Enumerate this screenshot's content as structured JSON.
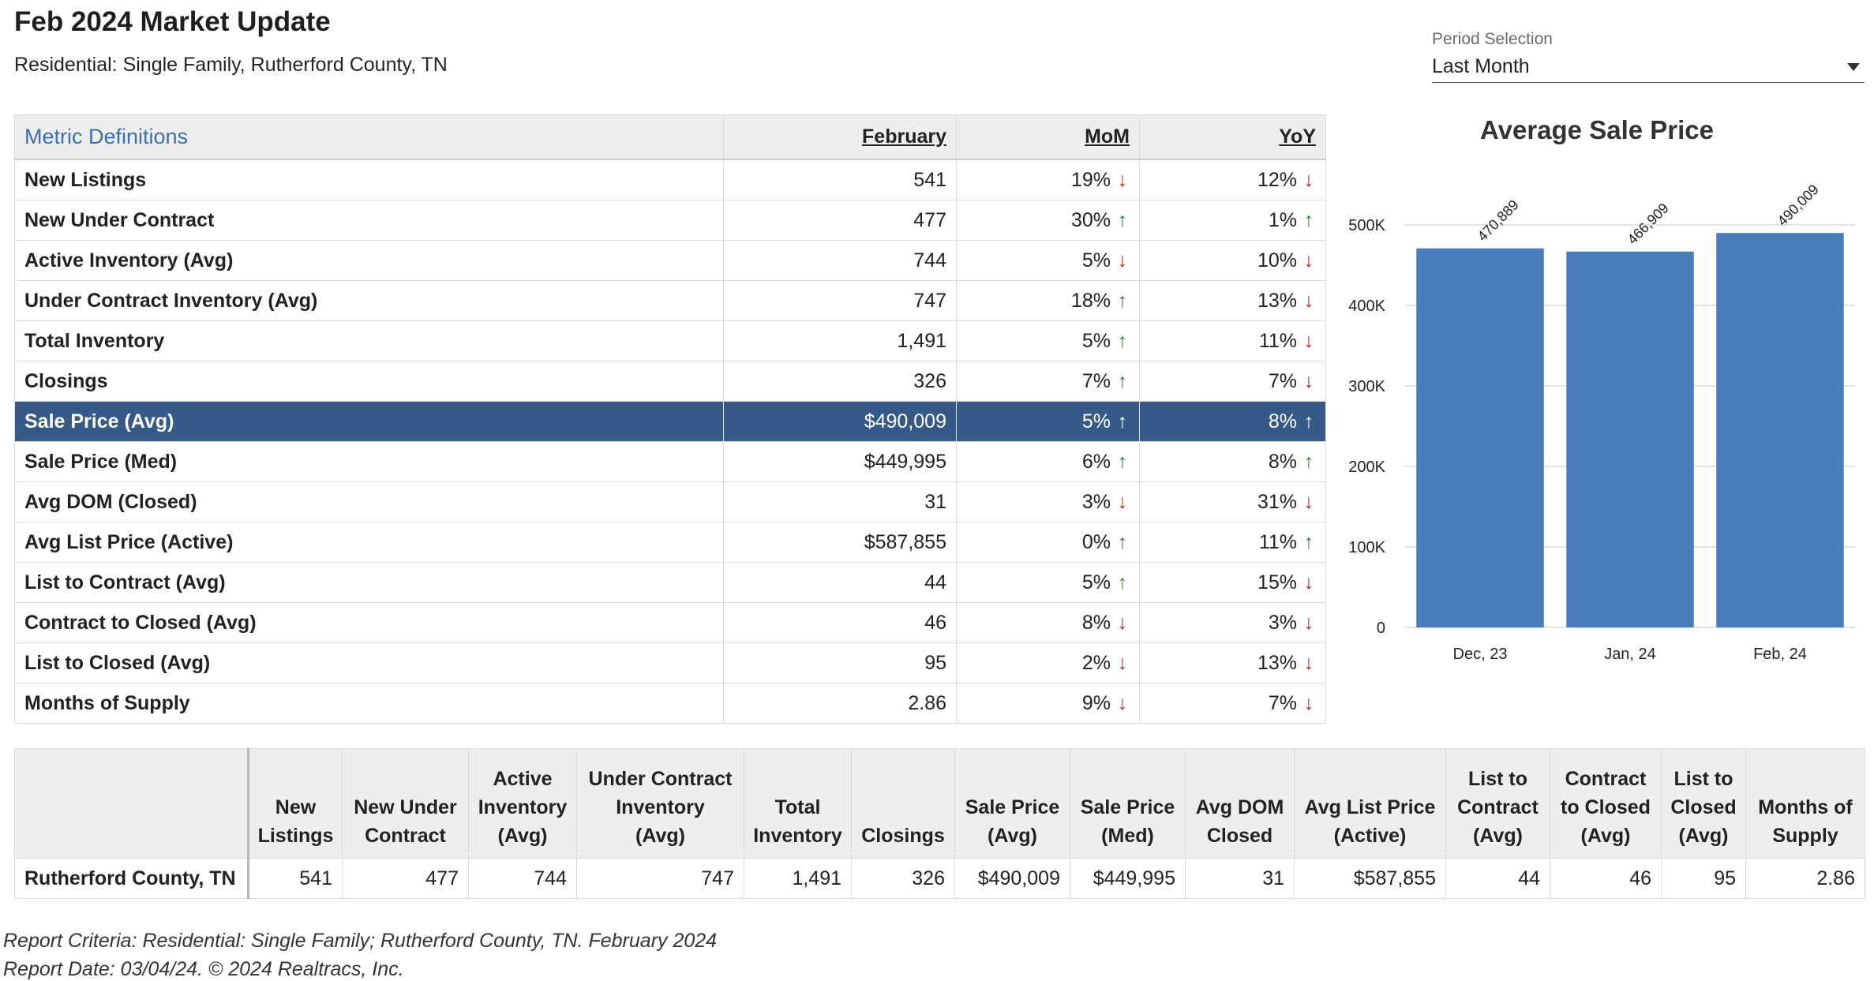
{
  "header": {
    "title": "Feb 2024 Market Update",
    "subtitle": "Residential: Single Family, Rutherford County, TN"
  },
  "period": {
    "label": "Period Selection",
    "value": "Last Month"
  },
  "metrics_table": {
    "headers": {
      "definitions": "Metric Definitions",
      "month": "February",
      "mom": "MoM",
      "yoy": "YoY"
    },
    "rows": [
      {
        "name": "New Listings",
        "value": "541",
        "mom": "19%",
        "mom_dir": "down",
        "yoy": "12%",
        "yoy_dir": "down"
      },
      {
        "name": "New Under Contract",
        "value": "477",
        "mom": "30%",
        "mom_dir": "up",
        "yoy": "1%",
        "yoy_dir": "up"
      },
      {
        "name": "Active Inventory (Avg)",
        "value": "744",
        "mom": "5%",
        "mom_dir": "down",
        "yoy": "10%",
        "yoy_dir": "down"
      },
      {
        "name": "Under Contract Inventory (Avg)",
        "value": "747",
        "mom": "18%",
        "mom_dir": "up",
        "yoy": "13%",
        "yoy_dir": "down"
      },
      {
        "name": "Total Inventory",
        "value": "1,491",
        "mom": "5%",
        "mom_dir": "up",
        "yoy": "11%",
        "yoy_dir": "down"
      },
      {
        "name": "Closings",
        "value": "326",
        "mom": "7%",
        "mom_dir": "up",
        "yoy": "7%",
        "yoy_dir": "down"
      },
      {
        "name": "Sale Price (Avg)",
        "value": "$490,009",
        "mom": "5%",
        "mom_dir": "up",
        "yoy": "8%",
        "yoy_dir": "up",
        "selected": true
      },
      {
        "name": "Sale Price (Med)",
        "value": "$449,995",
        "mom": "6%",
        "mom_dir": "up",
        "yoy": "8%",
        "yoy_dir": "up"
      },
      {
        "name": "Avg DOM (Closed)",
        "value": "31",
        "mom": "3%",
        "mom_dir": "down",
        "yoy": "31%",
        "yoy_dir": "down"
      },
      {
        "name": "Avg List Price (Active)",
        "value": "$587,855",
        "mom": "0%",
        "mom_dir": "up",
        "yoy": "11%",
        "yoy_dir": "up"
      },
      {
        "name": "List to Contract (Avg)",
        "value": "44",
        "mom": "5%",
        "mom_dir": "up",
        "yoy": "15%",
        "yoy_dir": "down"
      },
      {
        "name": "Contract to Closed (Avg)",
        "value": "46",
        "mom": "8%",
        "mom_dir": "down",
        "yoy": "3%",
        "yoy_dir": "down"
      },
      {
        "name": "List to Closed (Avg)",
        "value": "95",
        "mom": "2%",
        "mom_dir": "down",
        "yoy": "13%",
        "yoy_dir": "down"
      },
      {
        "name": "Months of Supply",
        "value": "2.86",
        "mom": "9%",
        "mom_dir": "down",
        "yoy": "7%",
        "yoy_dir": "down"
      }
    ]
  },
  "chart_data": {
    "type": "bar",
    "title": "Average Sale Price",
    "categories": [
      "Dec, 23",
      "Jan, 24",
      "Feb, 24"
    ],
    "values": [
      470889,
      466909,
      490009
    ],
    "value_labels": [
      "470,889",
      "466,909",
      "490,009"
    ],
    "ylim": [
      0,
      500000
    ],
    "yticks": [
      0,
      100000,
      200000,
      300000,
      400000,
      500000
    ],
    "ytick_labels": [
      "0",
      "100K",
      "200K",
      "300K",
      "400K",
      "500K"
    ],
    "xlabel": "",
    "ylabel": "",
    "grid": true,
    "bar_color": "#4a7dbb"
  },
  "summary_table": {
    "headers": [
      "",
      "New\nListings",
      "New Under\nContract",
      "Active\nInventory\n(Avg)",
      "Under Contract\nInventory\n(Avg)",
      "Total\nInventory",
      "Closings",
      "Sale Price\n(Avg)",
      "Sale Price\n(Med)",
      "Avg DOM\nClosed",
      "Avg List Price\n(Active)",
      "List to\nContract\n(Avg)",
      "Contract\nto Closed\n(Avg)",
      "List to\nClosed\n(Avg)",
      "Months of\nSupply"
    ],
    "row": [
      "Rutherford County, TN",
      "541",
      "477",
      "744",
      "747",
      "1,491",
      "326",
      "$490,009",
      "$449,995",
      "31",
      "$587,855",
      "44",
      "46",
      "95",
      "2.86"
    ]
  },
  "footer": {
    "criteria": "Report Criteria: Residential: Single Family; Rutherford County, TN. February 2024",
    "date": "Report Date: 03/04/24. © 2024 Realtracs, Inc."
  },
  "colors": {
    "header_bg": "#eeeeee",
    "selected_row": "#355a87",
    "link": "#3a6fb0",
    "up": "#2e8540",
    "down": "#b5242b"
  }
}
